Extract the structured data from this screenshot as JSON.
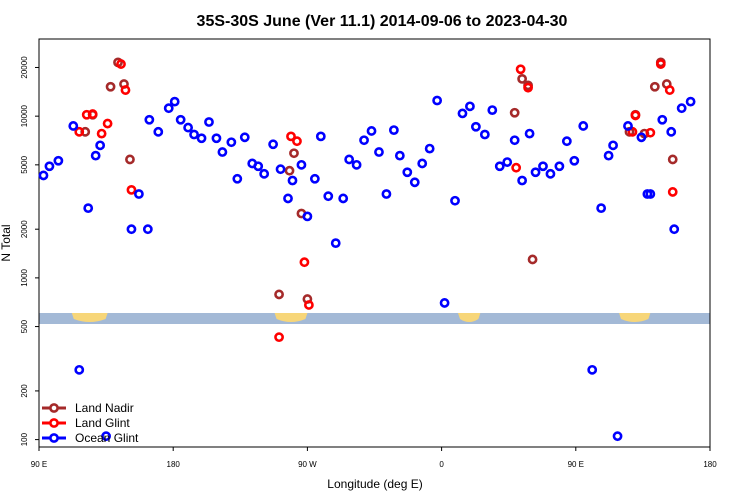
{
  "chart_data": {
    "type": "scatter",
    "title": "35S-30S June (Ver 11.1)   2014-09-06 to 2023-04-30",
    "xlabel": "Longitude (deg E)",
    "ylabel": "N Total",
    "x_axis": {
      "range_deg": [
        90,
        450
      ],
      "ticks": [
        {
          "value": 90,
          "label": "90 E"
        },
        {
          "value": 180,
          "label": "180"
        },
        {
          "value": 270,
          "label": "90 W"
        },
        {
          "value": 360,
          "label": "0"
        },
        {
          "value": 450,
          "label": "90 E"
        },
        {
          "value": 540,
          "label": "180"
        }
      ],
      "range": [
        90,
        540
      ]
    },
    "y_axis": {
      "scale": "log",
      "range": [
        90,
        30000
      ],
      "ticks": [
        100,
        200,
        500,
        1000,
        2000,
        5000,
        10000,
        20000
      ]
    },
    "map_strip": {
      "ocean_color": "#a3b9d6",
      "land_color": "#f7d679"
    },
    "legend": {
      "position": "bottom-left",
      "entries": [
        {
          "label": "Land Nadir",
          "color": "#a52a2a"
        },
        {
          "label": "Land Glint",
          "color": "#ff0000"
        },
        {
          "label": "Ocean Glint",
          "color": "#0000ff"
        }
      ]
    },
    "series": [
      {
        "name": "Land Nadir",
        "color": "#a52a2a",
        "points": [
          [
            121,
            8000
          ],
          [
            126,
            10200
          ],
          [
            138,
            15200
          ],
          [
            143,
            21500
          ],
          [
            147,
            15800
          ],
          [
            151,
            5400
          ],
          [
            251,
            790
          ],
          [
            258,
            4600
          ],
          [
            261,
            5900
          ],
          [
            266,
            2500
          ],
          [
            270,
            740
          ],
          [
            409,
            10500
          ],
          [
            414,
            17000
          ],
          [
            418,
            15500
          ],
          [
            421,
            1300
          ],
          [
            486,
            8000
          ],
          [
            490,
            10200
          ],
          [
            496,
            7800
          ],
          [
            503,
            15200
          ],
          [
            507,
            21500
          ],
          [
            511,
            15800
          ],
          [
            515,
            5400
          ]
        ]
      },
      {
        "name": "Land Glint",
        "color": "#ff0000",
        "points": [
          [
            117,
            8000
          ],
          [
            122,
            10200
          ],
          [
            126,
            10300
          ],
          [
            132,
            7800
          ],
          [
            136,
            9000
          ],
          [
            145,
            21000
          ],
          [
            148,
            14500
          ],
          [
            152,
            3500
          ],
          [
            251,
            430
          ],
          [
            259,
            7500
          ],
          [
            263,
            7000
          ],
          [
            268,
            1250
          ],
          [
            271,
            680
          ],
          [
            410,
            4800
          ],
          [
            413,
            19500
          ],
          [
            418,
            15000
          ],
          [
            488,
            8000
          ],
          [
            490,
            10100
          ],
          [
            500,
            7900
          ],
          [
            507,
            21000
          ],
          [
            513,
            14500
          ],
          [
            515,
            3400
          ]
        ]
      },
      {
        "name": "Ocean Glint",
        "color": "#0000ff",
        "points": [
          [
            93,
            4300
          ],
          [
            97,
            4900
          ],
          [
            103,
            5300
          ],
          [
            113,
            8700
          ],
          [
            117,
            270
          ],
          [
            123,
            2700
          ],
          [
            128,
            5700
          ],
          [
            131,
            6600
          ],
          [
            135,
            105
          ],
          [
            157,
            3300
          ],
          [
            164,
            9500
          ],
          [
            170,
            8000
          ],
          [
            177,
            11200
          ],
          [
            181,
            12300
          ],
          [
            185,
            9500
          ],
          [
            190,
            8500
          ],
          [
            194,
            7700
          ],
          [
            199,
            7300
          ],
          [
            204,
            9200
          ],
          [
            209,
            7300
          ],
          [
            213,
            6000
          ],
          [
            219,
            6900
          ],
          [
            223,
            4100
          ],
          [
            228,
            7400
          ],
          [
            233,
            5100
          ],
          [
            237,
            4900
          ],
          [
            241,
            4400
          ],
          [
            247,
            6700
          ],
          [
            252,
            4700
          ],
          [
            257,
            3100
          ],
          [
            260,
            4000
          ],
          [
            266,
            5000
          ],
          [
            270,
            2400
          ],
          [
            275,
            4100
          ],
          [
            279,
            7500
          ],
          [
            284,
            3200
          ],
          [
            289,
            1640
          ],
          [
            294,
            3100
          ],
          [
            298,
            5400
          ],
          [
            303,
            5000
          ],
          [
            308,
            7100
          ],
          [
            313,
            8100
          ],
          [
            318,
            6000
          ],
          [
            323,
            3300
          ],
          [
            328,
            8200
          ],
          [
            332,
            5700
          ],
          [
            337,
            4500
          ],
          [
            342,
            3900
          ],
          [
            347,
            5100
          ],
          [
            352,
            6300
          ],
          [
            357,
            12500
          ],
          [
            362,
            700
          ],
          [
            369,
            3000
          ],
          [
            374,
            10400
          ],
          [
            379,
            11500
          ],
          [
            383,
            8600
          ],
          [
            389,
            7700
          ],
          [
            394,
            10900
          ],
          [
            399,
            4900
          ],
          [
            404,
            5200
          ],
          [
            409,
            7100
          ],
          [
            414,
            4000
          ],
          [
            419,
            7800
          ],
          [
            423,
            4500
          ],
          [
            428,
            4900
          ],
          [
            433,
            4400
          ],
          [
            439,
            4900
          ],
          [
            444,
            7000
          ],
          [
            449,
            5300
          ],
          [
            455,
            8700
          ],
          [
            461,
            270
          ],
          [
            467,
            2700
          ],
          [
            472,
            5700
          ],
          [
            475,
            6600
          ],
          [
            478,
            105
          ],
          [
            500,
            3300
          ],
          [
            508,
            9500
          ],
          [
            514,
            8000
          ],
          [
            521,
            11200
          ],
          [
            527,
            12300
          ],
          [
            485,
            8700
          ],
          [
            494,
            7400
          ],
          [
            498,
            3300
          ],
          [
            516,
            2000
          ],
          [
            163,
            2000
          ],
          [
            152,
            2000
          ]
        ]
      }
    ]
  }
}
